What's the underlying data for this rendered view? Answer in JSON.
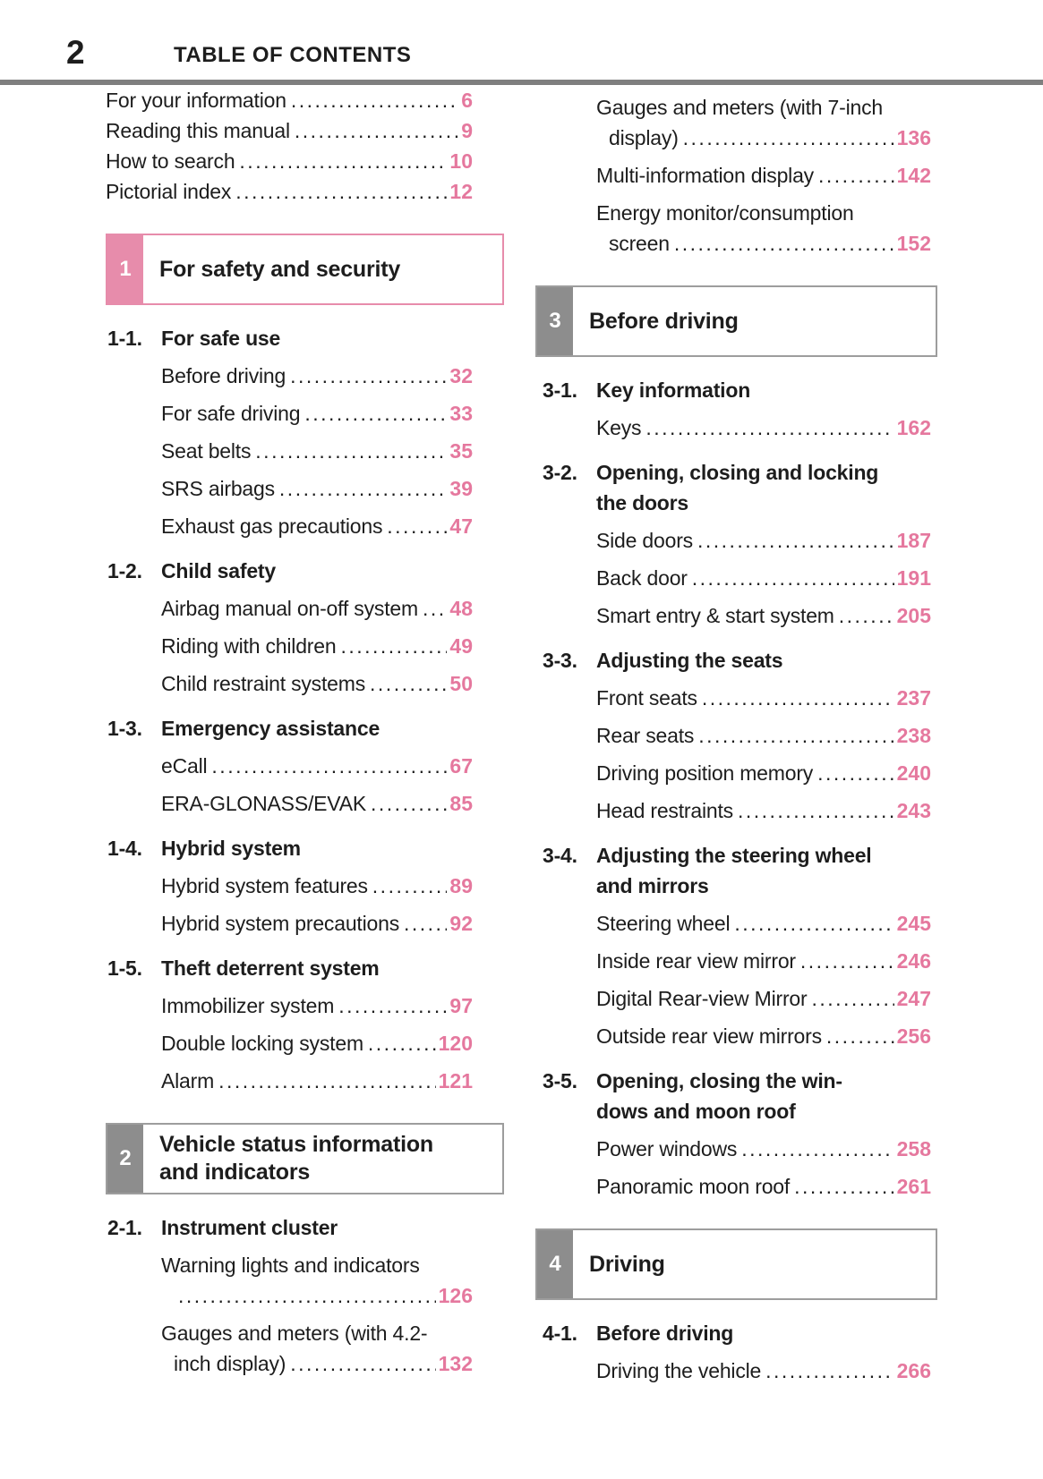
{
  "header": {
    "page_number": "2",
    "title": "TABLE OF CONTENTS"
  },
  "colors": {
    "page_number_pink": "#e5789e",
    "chapter_pink": "#e78cab",
    "chapter_gray": "#8d8d8d",
    "rule_gray": "#7f7f7f",
    "text": "#1d1d1d"
  },
  "columns": [
    {
      "blocks": [
        {
          "type": "item",
          "indent": false,
          "text": "For your information",
          "page": "6"
        },
        {
          "type": "item",
          "indent": false,
          "text": "Reading this manual",
          "page": "9"
        },
        {
          "type": "item",
          "indent": false,
          "text": "How to search",
          "page": "10"
        },
        {
          "type": "item",
          "indent": false,
          "text": "Pictorial index",
          "page": "12"
        },
        {
          "type": "chapter",
          "num": "1",
          "accent": "pink",
          "title": "For safety and security"
        },
        {
          "type": "section",
          "label": "1-1.",
          "title": "For safe use"
        },
        {
          "type": "item",
          "text": "Before driving",
          "page": "32"
        },
        {
          "type": "item",
          "text": "For safe driving",
          "page": "33"
        },
        {
          "type": "item",
          "text": "Seat belts",
          "page": "35"
        },
        {
          "type": "item",
          "text": "SRS airbags",
          "page": "39"
        },
        {
          "type": "item",
          "text": "Exhaust gas precautions",
          "page": "47"
        },
        {
          "type": "section",
          "label": "1-2.",
          "title": "Child safety"
        },
        {
          "type": "item",
          "text": "Airbag manual on-off system",
          "page": "48"
        },
        {
          "type": "item",
          "text": "Riding with children",
          "page": "49"
        },
        {
          "type": "item",
          "text": "Child restraint systems",
          "page": "50"
        },
        {
          "type": "section",
          "label": "1-3.",
          "title": "Emergency assistance"
        },
        {
          "type": "item",
          "text": "eCall",
          "page": "67"
        },
        {
          "type": "item",
          "text": "ERA-GLONASS/EVAK",
          "page": "85"
        },
        {
          "type": "section",
          "label": "1-4.",
          "title": "Hybrid system"
        },
        {
          "type": "item",
          "text": "Hybrid system features",
          "page": "89"
        },
        {
          "type": "item",
          "text": "Hybrid system precautions",
          "page": "92"
        },
        {
          "type": "section",
          "label": "1-5.",
          "title": "Theft deterrent system"
        },
        {
          "type": "item",
          "text": "Immobilizer system",
          "page": "97"
        },
        {
          "type": "item",
          "text": "Double locking system",
          "page": "120"
        },
        {
          "type": "item",
          "text": "Alarm",
          "page": "121"
        },
        {
          "type": "chapter",
          "num": "2",
          "accent": "gray",
          "title": "Vehicle status information",
          "title2": "and indicators"
        },
        {
          "type": "section",
          "label": "2-1.",
          "title": "Instrument cluster"
        },
        {
          "type": "item",
          "text": "Warning lights and indicators",
          "wrap": "",
          "page": "126"
        },
        {
          "type": "item",
          "text": "Gauges and meters (with 4.2-",
          "wrap": "inch display)",
          "page": "132"
        }
      ]
    },
    {
      "blocks": [
        {
          "type": "item",
          "text": "Gauges and meters (with 7-inch",
          "wrap": "display)",
          "page": "136"
        },
        {
          "type": "item",
          "text": "Multi-information display",
          "page": "142"
        },
        {
          "type": "item",
          "text": "Energy monitor/consumption",
          "wrap": "screen",
          "page": "152"
        },
        {
          "type": "chapter",
          "num": "3",
          "accent": "gray",
          "title": "Before driving"
        },
        {
          "type": "section",
          "label": "3-1.",
          "title": "Key information"
        },
        {
          "type": "item",
          "text": "Keys",
          "page": "162"
        },
        {
          "type": "section",
          "label": "3-2.",
          "title": "Opening, closing and locking",
          "title2": "the doors"
        },
        {
          "type": "item",
          "text": "Side doors",
          "page": "187"
        },
        {
          "type": "item",
          "text": "Back door",
          "page": "191"
        },
        {
          "type": "item",
          "text": "Smart entry & start system",
          "page": "205"
        },
        {
          "type": "section",
          "label": "3-3.",
          "title": "Adjusting the seats"
        },
        {
          "type": "item",
          "text": "Front seats",
          "page": "237"
        },
        {
          "type": "item",
          "text": "Rear seats",
          "page": "238"
        },
        {
          "type": "item",
          "text": "Driving position memory",
          "page": "240"
        },
        {
          "type": "item",
          "text": "Head restraints",
          "page": "243"
        },
        {
          "type": "section",
          "label": "3-4.",
          "title": "Adjusting the steering wheel",
          "title2": "and mirrors"
        },
        {
          "type": "item",
          "text": "Steering wheel",
          "page": "245"
        },
        {
          "type": "item",
          "text": "Inside rear view mirror",
          "page": "246"
        },
        {
          "type": "item",
          "text": "Digital Rear-view Mirror",
          "page": "247"
        },
        {
          "type": "item",
          "text": "Outside rear view mirrors",
          "page": "256"
        },
        {
          "type": "section",
          "label": "3-5.",
          "title": "Opening, closing the win-",
          "title2": "dows and moon roof"
        },
        {
          "type": "item",
          "text": "Power windows",
          "page": "258"
        },
        {
          "type": "item",
          "text": "Panoramic moon roof",
          "page": "261"
        },
        {
          "type": "chapter",
          "num": "4",
          "accent": "gray",
          "title": "Driving"
        },
        {
          "type": "section",
          "label": "4-1.",
          "title": "Before driving"
        },
        {
          "type": "item",
          "text": "Driving the vehicle",
          "page": "266"
        }
      ]
    }
  ]
}
